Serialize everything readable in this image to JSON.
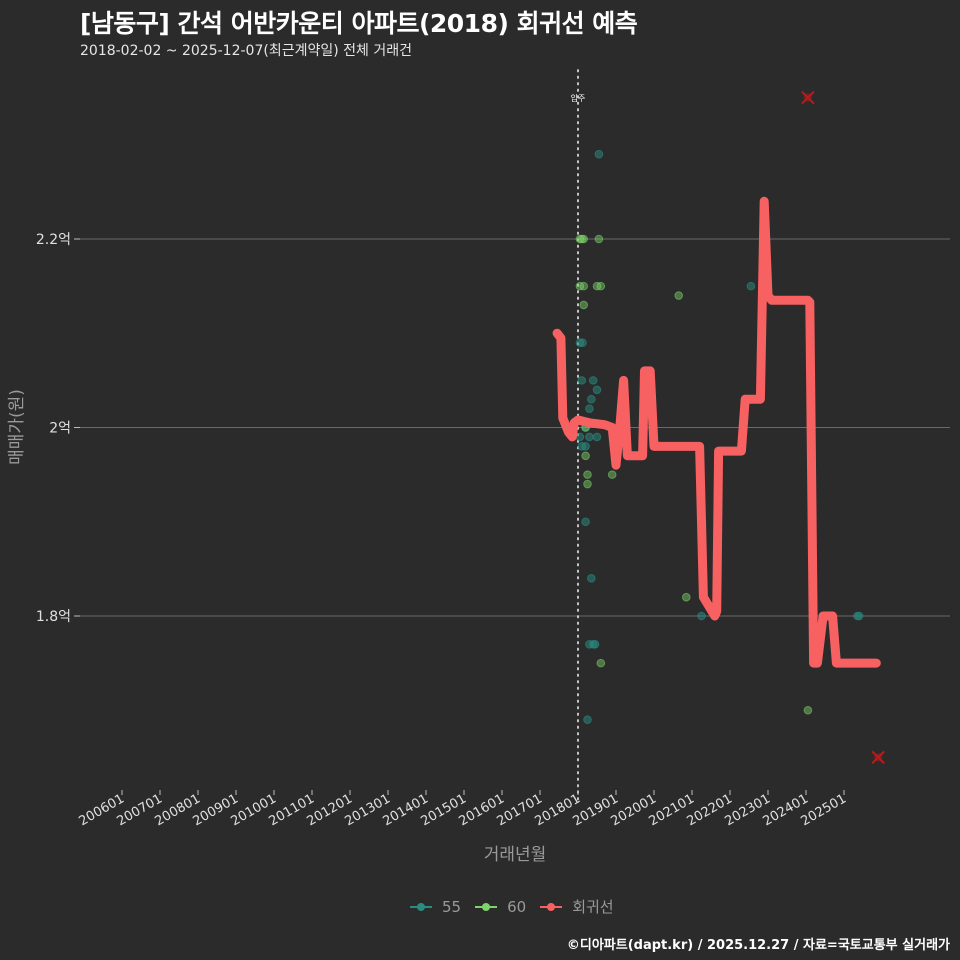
{
  "header": {
    "title": "[남동구] 간석 어반카운티 아파트(2018) 회귀선 예측",
    "subtitle": "2018-02-02 ~ 2025-12-07(최근계약일) 전체 거래건"
  },
  "caption": "©디아파트(dapt.kr) / 2025.12.27 / 자료=국토교통부 실거래가",
  "colors": {
    "background": "#2b2b2c",
    "grid": "#6a6a6a",
    "s55": "#2a8c7f",
    "s60": "#7ed36b",
    "regression": "#f86161",
    "outlier": "#b71c1c",
    "vline": "#d9d9d9"
  },
  "legend": [
    {
      "name": "55",
      "color": "#2a8c7f"
    },
    {
      "name": "60",
      "color": "#7ed36b"
    },
    {
      "name": "회귀선",
      "color": "#f86161"
    }
  ],
  "chart_data": {
    "type": "scatter+line",
    "title": "[남동구] 간석 어반카운티 아파트(2018) 회귀선 예측",
    "subtitle": "2018-02-02 ~ 2025-12-07(최근계약일) 전체 거래건",
    "xlabel": "거래년월",
    "ylabel": "매매가(원)",
    "x_ticks": [
      "200601",
      "200701",
      "200801",
      "200901",
      "201001",
      "201101",
      "201201",
      "201301",
      "201401",
      "201501",
      "201601",
      "201701",
      "201801",
      "201901",
      "202001",
      "202101",
      "202201",
      "202301",
      "202401",
      "202501"
    ],
    "y_ticks": [
      {
        "value": 1.8,
        "label": "1.8억"
      },
      {
        "value": 2.0,
        "label": "2억"
      },
      {
        "value": 2.2,
        "label": "2.2억"
      }
    ],
    "ylim": [
      1.62,
      2.37
    ],
    "xlim": [
      2003.2,
      2026.3
    ],
    "grid": true,
    "legend_position": "bottom",
    "annotation": {
      "x": 2018.0,
      "label": "입주",
      "style": "dotted-vertical"
    },
    "series": [
      {
        "name": "55",
        "points": [
          [
            2018.55,
            2.29
          ],
          [
            2018.05,
            2.09
          ],
          [
            2018.12,
            2.09
          ],
          [
            2018.1,
            2.05
          ],
          [
            2018.4,
            2.05
          ],
          [
            2018.35,
            2.03
          ],
          [
            2018.5,
            2.04
          ],
          [
            2018.3,
            2.02
          ],
          [
            2018.2,
            2.0
          ],
          [
            2018.05,
            1.99
          ],
          [
            2018.3,
            1.99
          ],
          [
            2018.5,
            1.99
          ],
          [
            2018.1,
            1.98
          ],
          [
            2018.2,
            1.98
          ],
          [
            2018.2,
            1.9
          ],
          [
            2018.35,
            1.84
          ],
          [
            2018.3,
            1.77
          ],
          [
            2018.4,
            1.77
          ],
          [
            2018.45,
            1.77
          ],
          [
            2018.25,
            1.69
          ],
          [
            2021.25,
            1.8
          ],
          [
            2022.55,
            2.15
          ],
          [
            2025.35,
            1.8
          ],
          [
            2025.4,
            1.8
          ]
        ]
      },
      {
        "name": "60",
        "points": [
          [
            2018.05,
            2.2
          ],
          [
            2018.1,
            2.2
          ],
          [
            2018.15,
            2.2
          ],
          [
            2018.55,
            2.2
          ],
          [
            2018.05,
            2.15
          ],
          [
            2018.15,
            2.15
          ],
          [
            2018.5,
            2.15
          ],
          [
            2018.6,
            2.15
          ],
          [
            2018.15,
            2.13
          ],
          [
            2018.2,
            1.97
          ],
          [
            2018.25,
            1.95
          ],
          [
            2018.25,
            1.94
          ],
          [
            2018.6,
            1.75
          ],
          [
            2018.2,
            2.0
          ],
          [
            2020.65,
            2.14
          ],
          [
            2020.85,
            1.82
          ],
          [
            2024.05,
            1.7
          ],
          [
            2018.9,
            1.95
          ]
        ]
      },
      {
        "name": "회귀선",
        "points": [
          [
            2017.45,
            2.1
          ],
          [
            2017.55,
            2.095
          ],
          [
            2017.6,
            2.01
          ],
          [
            2017.75,
            1.995
          ],
          [
            2017.85,
            1.99
          ],
          [
            2017.9,
            2.005
          ],
          [
            2018.0,
            2.008
          ],
          [
            2018.3,
            2.005
          ],
          [
            2018.7,
            2.003
          ],
          [
            2018.9,
            2.0
          ],
          [
            2019.0,
            1.96
          ],
          [
            2019.1,
            2.0
          ],
          [
            2019.2,
            2.05
          ],
          [
            2019.3,
            1.97
          ],
          [
            2019.5,
            1.97
          ],
          [
            2019.7,
            1.97
          ],
          [
            2019.75,
            2.06
          ],
          [
            2019.9,
            2.06
          ],
          [
            2020.0,
            1.98
          ],
          [
            2020.5,
            1.98
          ],
          [
            2020.9,
            1.98
          ],
          [
            2021.2,
            1.98
          ],
          [
            2021.3,
            1.82
          ],
          [
            2021.45,
            1.81
          ],
          [
            2021.6,
            1.8
          ],
          [
            2021.65,
            1.805
          ],
          [
            2021.7,
            1.975
          ],
          [
            2022.0,
            1.975
          ],
          [
            2022.3,
            1.975
          ],
          [
            2022.4,
            2.03
          ],
          [
            2022.6,
            2.03
          ],
          [
            2022.8,
            2.03
          ],
          [
            2022.9,
            2.24
          ],
          [
            2023.0,
            2.14
          ],
          [
            2023.1,
            2.135
          ],
          [
            2023.5,
            2.135
          ],
          [
            2023.8,
            2.135
          ],
          [
            2024.05,
            2.135
          ],
          [
            2024.1,
            2.133
          ],
          [
            2024.2,
            1.75
          ],
          [
            2024.3,
            1.75
          ],
          [
            2024.45,
            1.8
          ],
          [
            2024.7,
            1.8
          ],
          [
            2024.8,
            1.75
          ],
          [
            2025.0,
            1.75
          ],
          [
            2025.5,
            1.75
          ],
          [
            2025.85,
            1.75
          ]
        ]
      },
      {
        "name": "outliers",
        "points": [
          [
            2024.05,
            2.35
          ],
          [
            2025.9,
            1.65
          ]
        ]
      }
    ]
  },
  "axes": {
    "xlabel": "거래년월",
    "ylabel": "매매가(원)",
    "vline_label": "입주"
  }
}
